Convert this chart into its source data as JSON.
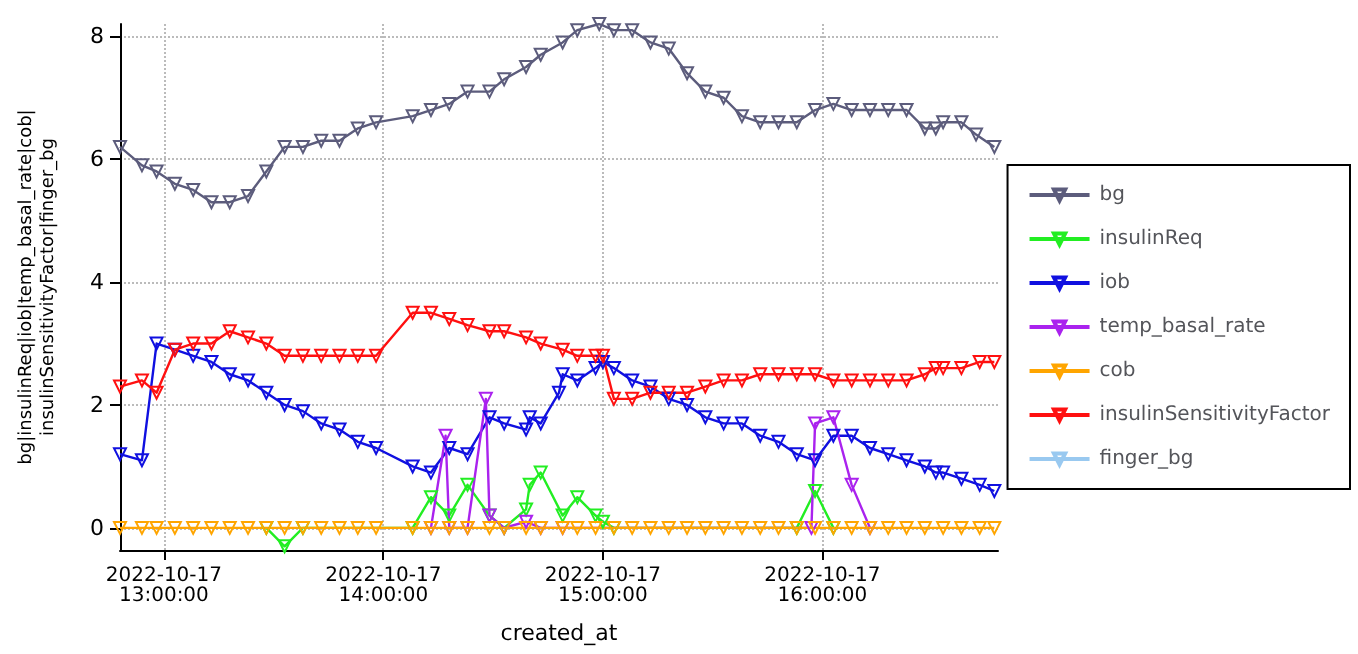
{
  "chart_data": {
    "type": "line",
    "xlabel": "created_at",
    "ylabel": "bg|insulinReq|iob|temp_basal_rate|cob|insulinSensitivityFactor|finger_bg",
    "xlim": [
      "2022-10-17T12:48",
      "2022-10-17T16:48"
    ],
    "xticks": [
      {
        "value": "2022-10-17T13:00",
        "label": "2022-10-17 13:00:00"
      },
      {
        "value": "2022-10-17T14:00",
        "label": "2022-10-17 14:00:00"
      },
      {
        "value": "2022-10-17T15:00",
        "label": "2022-10-17 15:00:00"
      },
      {
        "value": "2022-10-17T16:00",
        "label": "2022-10-17 16:00:00"
      }
    ],
    "ylim": [
      -0.36,
      8.2
    ],
    "yticks": [
      0,
      2,
      4,
      6,
      8
    ],
    "grid": true,
    "legend": "right",
    "marker": "triangle",
    "line_style": "solid",
    "series": [
      {
        "name": "bg",
        "color": "#5c5c7c",
        "x": [
          "2022-10-17T12:48",
          "2022-10-17T12:54",
          "2022-10-17T12:58",
          "2022-10-17T13:03",
          "2022-10-17T13:08",
          "2022-10-17T13:13",
          "2022-10-17T13:18",
          "2022-10-17T13:23",
          "2022-10-17T13:28",
          "2022-10-17T13:33",
          "2022-10-17T13:38",
          "2022-10-17T13:43",
          "2022-10-17T13:48",
          "2022-10-17T13:53",
          "2022-10-17T13:58",
          "2022-10-17T14:08",
          "2022-10-17T14:13",
          "2022-10-17T14:18",
          "2022-10-17T14:23",
          "2022-10-17T14:29",
          "2022-10-17T14:33",
          "2022-10-17T14:39",
          "2022-10-17T14:43",
          "2022-10-17T14:49",
          "2022-10-17T14:53",
          "2022-10-17T14:59",
          "2022-10-17T15:03",
          "2022-10-17T15:08",
          "2022-10-17T15:13",
          "2022-10-17T15:18",
          "2022-10-17T15:23",
          "2022-10-17T15:28",
          "2022-10-17T15:33",
          "2022-10-17T15:38",
          "2022-10-17T15:43",
          "2022-10-17T15:48",
          "2022-10-17T15:53",
          "2022-10-17T15:58",
          "2022-10-17T16:03",
          "2022-10-17T16:08",
          "2022-10-17T16:13",
          "2022-10-17T16:18",
          "2022-10-17T16:23",
          "2022-10-17T16:28",
          "2022-10-17T16:31",
          "2022-10-17T16:33",
          "2022-10-17T16:38",
          "2022-10-17T16:42",
          "2022-10-17T16:47"
        ],
        "values": [
          6.2,
          5.9,
          5.8,
          5.6,
          5.5,
          5.3,
          5.3,
          5.4,
          5.8,
          6.2,
          6.2,
          6.3,
          6.3,
          6.5,
          6.6,
          6.7,
          6.8,
          6.9,
          7.1,
          7.1,
          7.3,
          7.5,
          7.7,
          7.9,
          8.1,
          8.2,
          8.1,
          8.1,
          7.9,
          7.8,
          7.4,
          7.1,
          7.0,
          6.7,
          6.6,
          6.6,
          6.6,
          6.8,
          6.9,
          6.8,
          6.8,
          6.8,
          6.8,
          6.5,
          6.5,
          6.6,
          6.6,
          6.4,
          6.2
        ]
      },
      {
        "name": "insulinReq",
        "color": "#22ee22",
        "x": [
          "2022-10-17T13:28",
          "2022-10-17T13:33",
          "2022-10-17T13:38",
          "2022-10-17T14:08",
          "2022-10-17T14:13",
          "2022-10-17T14:18",
          "2022-10-17T14:23",
          "2022-10-17T14:29",
          "2022-10-17T14:33",
          "2022-10-17T14:39",
          "2022-10-17T14:40",
          "2022-10-17T14:43",
          "2022-10-17T14:49",
          "2022-10-17T14:53",
          "2022-10-17T14:58",
          "2022-10-17T15:00",
          "2022-10-17T15:03",
          "2022-10-17T15:53",
          "2022-10-17T15:58",
          "2022-10-17T16:03"
        ],
        "values": [
          0,
          -0.3,
          0,
          0,
          0.5,
          0.2,
          0.7,
          0.2,
          0,
          0.3,
          0.7,
          0.9,
          0.2,
          0.5,
          0.2,
          0.1,
          0,
          0,
          0.6,
          0
        ]
      },
      {
        "name": "iob",
        "color": "#1010e0",
        "x": [
          "2022-10-17T12:48",
          "2022-10-17T12:54",
          "2022-10-17T12:58",
          "2022-10-17T13:03",
          "2022-10-17T13:08",
          "2022-10-17T13:13",
          "2022-10-17T13:18",
          "2022-10-17T13:23",
          "2022-10-17T13:28",
          "2022-10-17T13:33",
          "2022-10-17T13:38",
          "2022-10-17T13:43",
          "2022-10-17T13:48",
          "2022-10-17T13:53",
          "2022-10-17T13:58",
          "2022-10-17T14:08",
          "2022-10-17T14:13",
          "2022-10-17T14:18",
          "2022-10-17T14:23",
          "2022-10-17T14:29",
          "2022-10-17T14:33",
          "2022-10-17T14:39",
          "2022-10-17T14:40",
          "2022-10-17T14:43",
          "2022-10-17T14:48",
          "2022-10-17T14:49",
          "2022-10-17T14:53",
          "2022-10-17T14:58",
          "2022-10-17T15:00",
          "2022-10-17T15:03",
          "2022-10-17T15:08",
          "2022-10-17T15:13",
          "2022-10-17T15:18",
          "2022-10-17T15:23",
          "2022-10-17T15:28",
          "2022-10-17T15:33",
          "2022-10-17T15:38",
          "2022-10-17T15:43",
          "2022-10-17T15:48",
          "2022-10-17T15:53",
          "2022-10-17T15:58",
          "2022-10-17T16:03",
          "2022-10-17T16:08",
          "2022-10-17T16:13",
          "2022-10-17T16:18",
          "2022-10-17T16:23",
          "2022-10-17T16:28",
          "2022-10-17T16:31",
          "2022-10-17T16:33",
          "2022-10-17T16:38",
          "2022-10-17T16:43",
          "2022-10-17T16:47"
        ],
        "values": [
          1.2,
          1.1,
          3.0,
          2.9,
          2.8,
          2.7,
          2.5,
          2.4,
          2.2,
          2.0,
          1.9,
          1.7,
          1.6,
          1.4,
          1.3,
          1.0,
          0.9,
          1.3,
          1.2,
          1.8,
          1.7,
          1.6,
          1.8,
          1.7,
          2.2,
          2.5,
          2.4,
          2.6,
          2.7,
          2.6,
          2.4,
          2.3,
          2.1,
          2.0,
          1.8,
          1.7,
          1.7,
          1.5,
          1.4,
          1.2,
          1.1,
          1.5,
          1.5,
          1.3,
          1.2,
          1.1,
          1.0,
          0.9,
          0.9,
          0.8,
          0.7,
          0.6
        ]
      },
      {
        "name": "temp_basal_rate",
        "color": "#aa22ee",
        "x": [
          "2022-10-17T14:13",
          "2022-10-17T14:17",
          "2022-10-17T14:18",
          "2022-10-17T14:23",
          "2022-10-17T14:28",
          "2022-10-17T14:29",
          "2022-10-17T14:33",
          "2022-10-17T14:39",
          "2022-10-17T14:43",
          "2022-10-17T14:49",
          "2022-10-17T15:57",
          "2022-10-17T15:58",
          "2022-10-17T16:03",
          "2022-10-17T16:08",
          "2022-10-17T16:13"
        ],
        "values": [
          0,
          1.5,
          0,
          0,
          2.1,
          0.2,
          0,
          0.1,
          0,
          0,
          0,
          1.7,
          1.8,
          0.7,
          0
        ]
      },
      {
        "name": "cob",
        "color": "#ffa500",
        "x": [
          "2022-10-17T12:48",
          "2022-10-17T12:54",
          "2022-10-17T12:58",
          "2022-10-17T13:03",
          "2022-10-17T13:08",
          "2022-10-17T13:13",
          "2022-10-17T13:18",
          "2022-10-17T13:23",
          "2022-10-17T13:28",
          "2022-10-17T13:33",
          "2022-10-17T13:38",
          "2022-10-17T13:43",
          "2022-10-17T13:48",
          "2022-10-17T13:53",
          "2022-10-17T13:58",
          "2022-10-17T14:08",
          "2022-10-17T14:13",
          "2022-10-17T14:18",
          "2022-10-17T14:23",
          "2022-10-17T14:29",
          "2022-10-17T14:33",
          "2022-10-17T14:39",
          "2022-10-17T14:43",
          "2022-10-17T14:49",
          "2022-10-17T14:53",
          "2022-10-17T14:58",
          "2022-10-17T15:03",
          "2022-10-17T15:08",
          "2022-10-17T15:13",
          "2022-10-17T15:18",
          "2022-10-17T15:23",
          "2022-10-17T15:28",
          "2022-10-17T15:33",
          "2022-10-17T15:38",
          "2022-10-17T15:43",
          "2022-10-17T15:48",
          "2022-10-17T15:53",
          "2022-10-17T15:58",
          "2022-10-17T16:03",
          "2022-10-17T16:08",
          "2022-10-17T16:13",
          "2022-10-17T16:18",
          "2022-10-17T16:23",
          "2022-10-17T16:28",
          "2022-10-17T16:33",
          "2022-10-17T16:38",
          "2022-10-17T16:43",
          "2022-10-17T16:47"
        ],
        "values": [
          0,
          0,
          0,
          0,
          0,
          0,
          0,
          0,
          0,
          0,
          0,
          0,
          0,
          0,
          0,
          0,
          0,
          0,
          0,
          0,
          0,
          0,
          0,
          0,
          0,
          0,
          0,
          0,
          0,
          0,
          0,
          0,
          0,
          0,
          0,
          0,
          0,
          0,
          0,
          0,
          0,
          0,
          0,
          0,
          0,
          0,
          0,
          0
        ]
      },
      {
        "name": "insulinSensitivityFactor",
        "color": "#ff1010",
        "x": [
          "2022-10-17T12:48",
          "2022-10-17T12:54",
          "2022-10-17T12:58",
          "2022-10-17T13:03",
          "2022-10-17T13:08",
          "2022-10-17T13:13",
          "2022-10-17T13:18",
          "2022-10-17T13:23",
          "2022-10-17T13:28",
          "2022-10-17T13:33",
          "2022-10-17T13:38",
          "2022-10-17T13:43",
          "2022-10-17T13:48",
          "2022-10-17T13:53",
          "2022-10-17T13:58",
          "2022-10-17T14:08",
          "2022-10-17T14:13",
          "2022-10-17T14:18",
          "2022-10-17T14:23",
          "2022-10-17T14:29",
          "2022-10-17T14:33",
          "2022-10-17T14:39",
          "2022-10-17T14:43",
          "2022-10-17T14:49",
          "2022-10-17T14:53",
          "2022-10-17T14:58",
          "2022-10-17T15:00",
          "2022-10-17T15:03",
          "2022-10-17T15:08",
          "2022-10-17T15:13",
          "2022-10-17T15:18",
          "2022-10-17T15:23",
          "2022-10-17T15:28",
          "2022-10-17T15:33",
          "2022-10-17T15:38",
          "2022-10-17T15:43",
          "2022-10-17T15:48",
          "2022-10-17T15:53",
          "2022-10-17T15:58",
          "2022-10-17T16:03",
          "2022-10-17T16:08",
          "2022-10-17T16:13",
          "2022-10-17T16:18",
          "2022-10-17T16:23",
          "2022-10-17T16:28",
          "2022-10-17T16:31",
          "2022-10-17T16:33",
          "2022-10-17T16:38",
          "2022-10-17T16:43",
          "2022-10-17T16:47"
        ],
        "values": [
          2.3,
          2.4,
          2.2,
          2.9,
          3.0,
          3.0,
          3.2,
          3.1,
          3.0,
          2.8,
          2.8,
          2.8,
          2.8,
          2.8,
          2.8,
          3.5,
          3.5,
          3.4,
          3.3,
          3.2,
          3.2,
          3.1,
          3.0,
          2.9,
          2.8,
          2.8,
          2.8,
          2.1,
          2.1,
          2.2,
          2.2,
          2.2,
          2.3,
          2.4,
          2.4,
          2.5,
          2.5,
          2.5,
          2.5,
          2.4,
          2.4,
          2.4,
          2.4,
          2.4,
          2.5,
          2.6,
          2.6,
          2.6,
          2.7,
          2.7
        ]
      },
      {
        "name": "finger_bg",
        "color": "#99c9f0"
      }
    ]
  }
}
